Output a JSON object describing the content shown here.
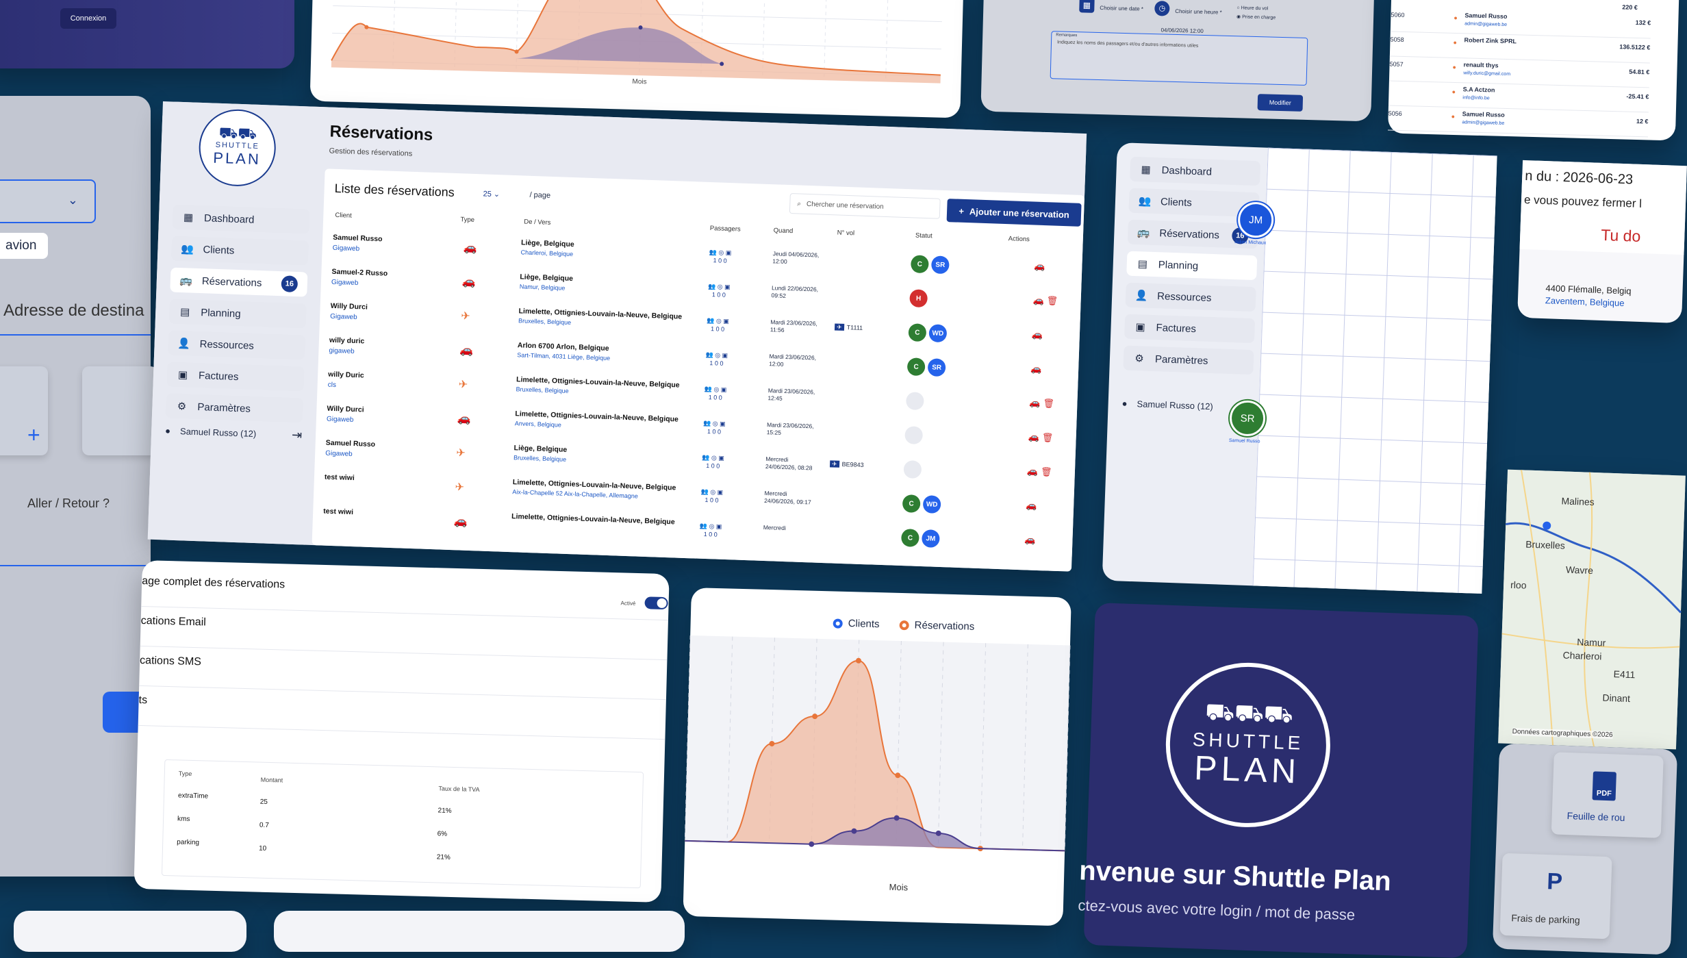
{
  "login_top": {
    "button": "Connexion"
  },
  "left_form": {
    "transport_value": "avion",
    "destination_label": "Adresse de destina",
    "return_label": "Aller / Retour ?",
    "plus": "+"
  },
  "top_chart": {
    "xlabel": "Mois"
  },
  "top_form": {
    "date_label": "Choisir une date *",
    "hour_label": "Choisir une heure *",
    "radio_1": "Heure du vol",
    "radio_2": "Prise en charge",
    "datetime_value": "04/06/2026 12:00",
    "remarks_label": "Remarques",
    "remarks_placeholder": "Indiquez les noms des passagers et/ou d'autres informations utiles",
    "submit": "Modifier"
  },
  "invoices_list": [
    {
      "id": "5060",
      "name": "Samuel Russo",
      "email": "admin@gigaweb.be",
      "amount": "132 €"
    },
    {
      "id": "5058",
      "name": "Robert Zink SPRL",
      "email": "",
      "amount": "136.5122 €"
    },
    {
      "id": "5057",
      "name": "renault thys",
      "email": "willy.duric@gmail.com",
      "amount": "54.81 €"
    },
    {
      "id": "",
      "name": "S.A Actzon",
      "email": "info@info.be",
      "amount": "-25.41 €"
    },
    {
      "id": "5056",
      "name": "Samuel Russo",
      "email": "admin@gigaweb.be",
      "amount": "12 €"
    }
  ],
  "invoices_top_amount": "220 €",
  "main": {
    "logo_top": "SHUTTLE",
    "logo_bottom": "PLAN",
    "title": "Réservations",
    "subtitle": "Gestion des réservations",
    "list_title": "Liste des réservations",
    "per_page_value": "25",
    "per_page_label": "/ page",
    "search_placeholder": "Chercher une réservation",
    "add_button": "Ajouter une réservation",
    "user": "Samuel Russo (12)",
    "columns": [
      "Client",
      "Type",
      "De / Vers",
      "Passagers",
      "Quand",
      "N° vol",
      "Statut",
      "Actions"
    ]
  },
  "sidebar": {
    "items": [
      {
        "label": "Dashboard"
      },
      {
        "label": "Clients"
      },
      {
        "label": "Réservations",
        "badge": "16"
      },
      {
        "label": "Planning"
      },
      {
        "label": "Ressources"
      },
      {
        "label": "Factures"
      },
      {
        "label": "Paramètres"
      }
    ]
  },
  "reservations": [
    {
      "client": "Samuel Russo",
      "company": "Gigaweb",
      "type": "car",
      "from": "Liège, Belgique",
      "to": "Charleroi, Belgique",
      "pax": "1 0 0",
      "when": "Jeudi 04/06/2026, 12:00",
      "flight": "",
      "status": [
        "C",
        "SR"
      ]
    },
    {
      "client": "Samuel-2 Russo",
      "company": "Gigaweb",
      "type": "car",
      "from": "Liège, Belgique",
      "to": "Namur, Belgique",
      "pax": "1 0 0",
      "when": "Lundi 22/06/2026, 09:52",
      "flight": "",
      "status": [
        "H"
      ]
    },
    {
      "client": "Willy Durci",
      "company": "Gigaweb",
      "type": "plane",
      "from": "Limelette, Ottignies-Louvain-la-Neuve, Belgique",
      "to": "Bruxelles, Belgique",
      "pax": "1 0 0",
      "when": "Mardi 23/06/2026, 11:56",
      "flight": "T1111",
      "status": [
        "C",
        "WD"
      ]
    },
    {
      "client": "willy duric",
      "company": "gigaweb",
      "type": "car",
      "from": "Arlon 6700 Arlon, Belgique",
      "to": "Sart-Tilman, 4031 Liège, Belgique",
      "pax": "1 0 0",
      "when": "Mardi 23/06/2026, 12:00",
      "flight": "",
      "status": [
        "C",
        "SR"
      ]
    },
    {
      "client": "willy Duric",
      "company": "cls",
      "type": "plane",
      "from": "Limelette, Ottignies-Louvain-la-Neuve, Belgique",
      "to": "Bruxelles, Belgique",
      "pax": "1 0 0",
      "when": "Mardi 23/06/2026, 12:45",
      "flight": "",
      "status": [
        ""
      ]
    },
    {
      "client": "Willy Durci",
      "company": "Gigaweb",
      "type": "car",
      "from": "Limelette, Ottignies-Louvain-la-Neuve, Belgique",
      "to": "Anvers, Belgique",
      "pax": "1 0 0",
      "when": "Mardi 23/06/2026, 15:25",
      "flight": "",
      "status": [
        ""
      ]
    },
    {
      "client": "Samuel Russo",
      "company": "Gigaweb",
      "type": "plane",
      "from": "Liège, Belgique",
      "to": "Bruxelles, Belgique",
      "pax": "1 0 0",
      "when": "Mercredi 24/06/2026, 08:28",
      "flight": "BE9843",
      "status": [
        ""
      ]
    },
    {
      "client": "test wiwi",
      "company": "",
      "type": "plane",
      "from": "Limelette, Ottignies-Louvain-la-Neuve, Belgique",
      "to": "Aix-la-Chapelle 52 Aix-la-Chapelle, Allemagne",
      "pax": "1 0 0",
      "when": "Mercredi 24/06/2026, 09:17",
      "flight": "",
      "status": [
        "C",
        "WD"
      ]
    },
    {
      "client": "test wiwi",
      "company": "",
      "type": "car",
      "from": "Limelette, Ottignies-Louvain-la-Neuve, Belgique",
      "to": "",
      "pax": "1 0 0",
      "when": "Mercredi",
      "flight": "",
      "status": [
        "C",
        "JM"
      ]
    }
  ],
  "planning": {
    "resource_1": "JM",
    "resource_1_name": "Julien Michaux",
    "resource_2": "SR",
    "resource_2_name": "Samuel Russo",
    "user": "Samuel Russo (12)"
  },
  "right_info": {
    "date_prefix": "n du : 2026-06-23",
    "note": "e vous pouvez fermer l",
    "warn": "Tu do",
    "addr_line1": "4400 Flémalle, Belgiq",
    "addr_line2": "Zaventem, Belgique"
  },
  "map": {
    "labels": [
      "Malines",
      "Bruxelles",
      "Wavre",
      "Namur",
      "Charleroi",
      "Dinant",
      "E411",
      "rloo"
    ],
    "attribution": "Données cartographiques ©2026"
  },
  "settings": {
    "rows": [
      "age complet des réservations",
      "cations Email",
      "cations SMS",
      "ts"
    ],
    "toggle_label": "Activé",
    "table_headers": [
      "Type",
      "Montant",
      "Taux de la TVA"
    ],
    "table_rows": [
      [
        "extraTime",
        "25",
        "21%"
      ],
      [
        "kms",
        "0.7",
        "6%"
      ],
      [
        "parking",
        "10",
        "21%"
      ]
    ]
  },
  "big_chart": {
    "legend_1": "Clients",
    "legend_2": "Réservations",
    "xlabel": "Mois"
  },
  "chart_data": {
    "type": "area",
    "xlabel": "Mois",
    "series": [
      {
        "name": "Clients",
        "values": [
          0,
          0,
          0,
          0,
          1,
          2,
          1,
          0,
          0,
          0
        ]
      },
      {
        "name": "Réservations",
        "values": [
          0,
          0,
          7,
          9,
          13,
          5,
          0,
          0,
          0,
          0
        ]
      }
    ],
    "colors": {
      "Clients": "#4a3e8e",
      "Réservations": "#e8753a"
    }
  },
  "welcome": {
    "logo_top": "SHUTTLE",
    "logo_bottom": "PLAN",
    "title": "nvenue sur Shuttle Plan",
    "subtitle": "ctez-vous avec votre login / mot de passe"
  },
  "docs": {
    "pdf_label": "Feuille de rou",
    "pdf_icon": "PDF",
    "parking_label": "Frais de parking",
    "parking_icon": "P"
  }
}
